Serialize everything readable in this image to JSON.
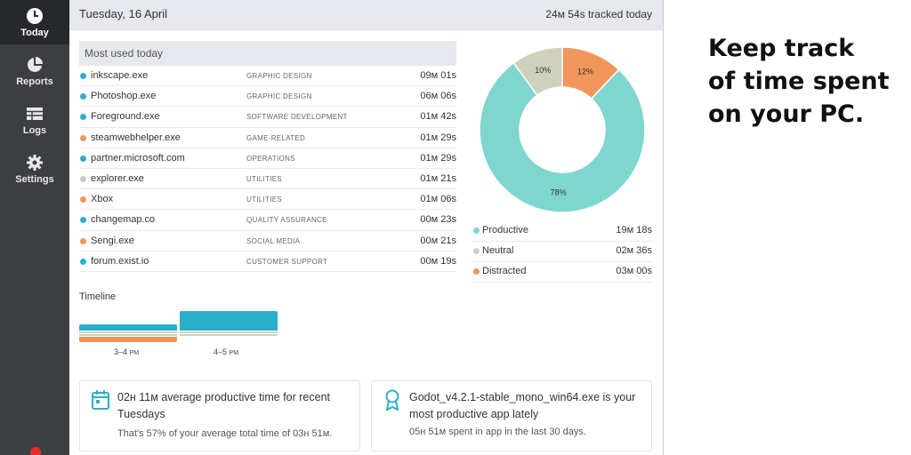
{
  "sidebar": {
    "items": [
      {
        "label": "Today",
        "icon": "clock-icon"
      },
      {
        "label": "Reports",
        "icon": "pie-chart-icon"
      },
      {
        "label": "Logs",
        "icon": "table-icon"
      },
      {
        "label": "Settings",
        "icon": "gear-icon"
      }
    ]
  },
  "header": {
    "date": "Tuesday, 16 April",
    "tracked": "24м 54s tracked today"
  },
  "most_used": {
    "title": "Most used today",
    "rows": [
      {
        "name": "inkscape.exe",
        "category": "GRAPHIC DESIGN",
        "duration": "09м 01s",
        "color": "#2aafcb"
      },
      {
        "name": "Photoshop.exe",
        "category": "GRAPHIC DESIGN",
        "duration": "06м 06s",
        "color": "#2aafcb"
      },
      {
        "name": "Foreground.exe",
        "category": "SOFTWARE DEVELOPMENT",
        "duration": "01м 42s",
        "color": "#2aafcb"
      },
      {
        "name": "steamwebhelper.exe",
        "category": "GAME-RELATED",
        "duration": "01м 29s",
        "color": "#f0965a"
      },
      {
        "name": "partner.microsoft.com",
        "category": "OPERATIONS",
        "duration": "01м 29s",
        "color": "#2aafcb"
      },
      {
        "name": "explorer.exe",
        "category": "UTILITIES",
        "duration": "01м 21s",
        "color": "#c9cbb8"
      },
      {
        "name": "Xbox",
        "category": "UTILITIES",
        "duration": "01м 06s",
        "color": "#f0965a"
      },
      {
        "name": "changemap.co",
        "category": "QUALITY ASSURANCE",
        "duration": "00м 23s",
        "color": "#2aafcb"
      },
      {
        "name": "Sengi.exe",
        "category": "SOCIAL MEDIA",
        "duration": "00м 21s",
        "color": "#f0965a"
      },
      {
        "name": "forum.exist.io",
        "category": "CUSTOMER SUPPORT",
        "duration": "00м 19s",
        "color": "#2aafcb"
      }
    ]
  },
  "productivity": {
    "slices": [
      {
        "label": "Productive",
        "percent": 78,
        "percent_label": "78%",
        "duration": "19м 18s",
        "color": "#7fd6cf"
      },
      {
        "label": "Neutral",
        "percent": 10,
        "percent_label": "10%",
        "duration": "02м 36s",
        "color": "#cfd1bd"
      },
      {
        "label": "Distracted",
        "percent": 12,
        "percent_label": "12%",
        "duration": "03м 00s",
        "color": "#f0965a"
      }
    ]
  },
  "timeline": {
    "title": "Timeline",
    "hours": [
      {
        "label": "3–4",
        "suffix": "PM"
      },
      {
        "label": "4–5",
        "suffix": "PM"
      }
    ]
  },
  "cards": [
    {
      "icon": "calendar-icon",
      "title": "02н 11м average productive time for recent Tuesdays",
      "subtitle": "That's 57% of your average total time of 03н 51м."
    },
    {
      "icon": "award-icon",
      "title": "Godot_v4.2.1-stable_mono_win64.exe is your most productive app lately",
      "subtitle": "05н 51м spent in app in the last 30 days."
    }
  ],
  "promo": {
    "line1": "Keep track",
    "line2": "of time spent",
    "line3": "on your PC."
  },
  "colors": {
    "productive": "#7fd6cf",
    "neutral": "#cfd1bd",
    "distracted": "#f0965a",
    "accent": "#2aafcb"
  }
}
